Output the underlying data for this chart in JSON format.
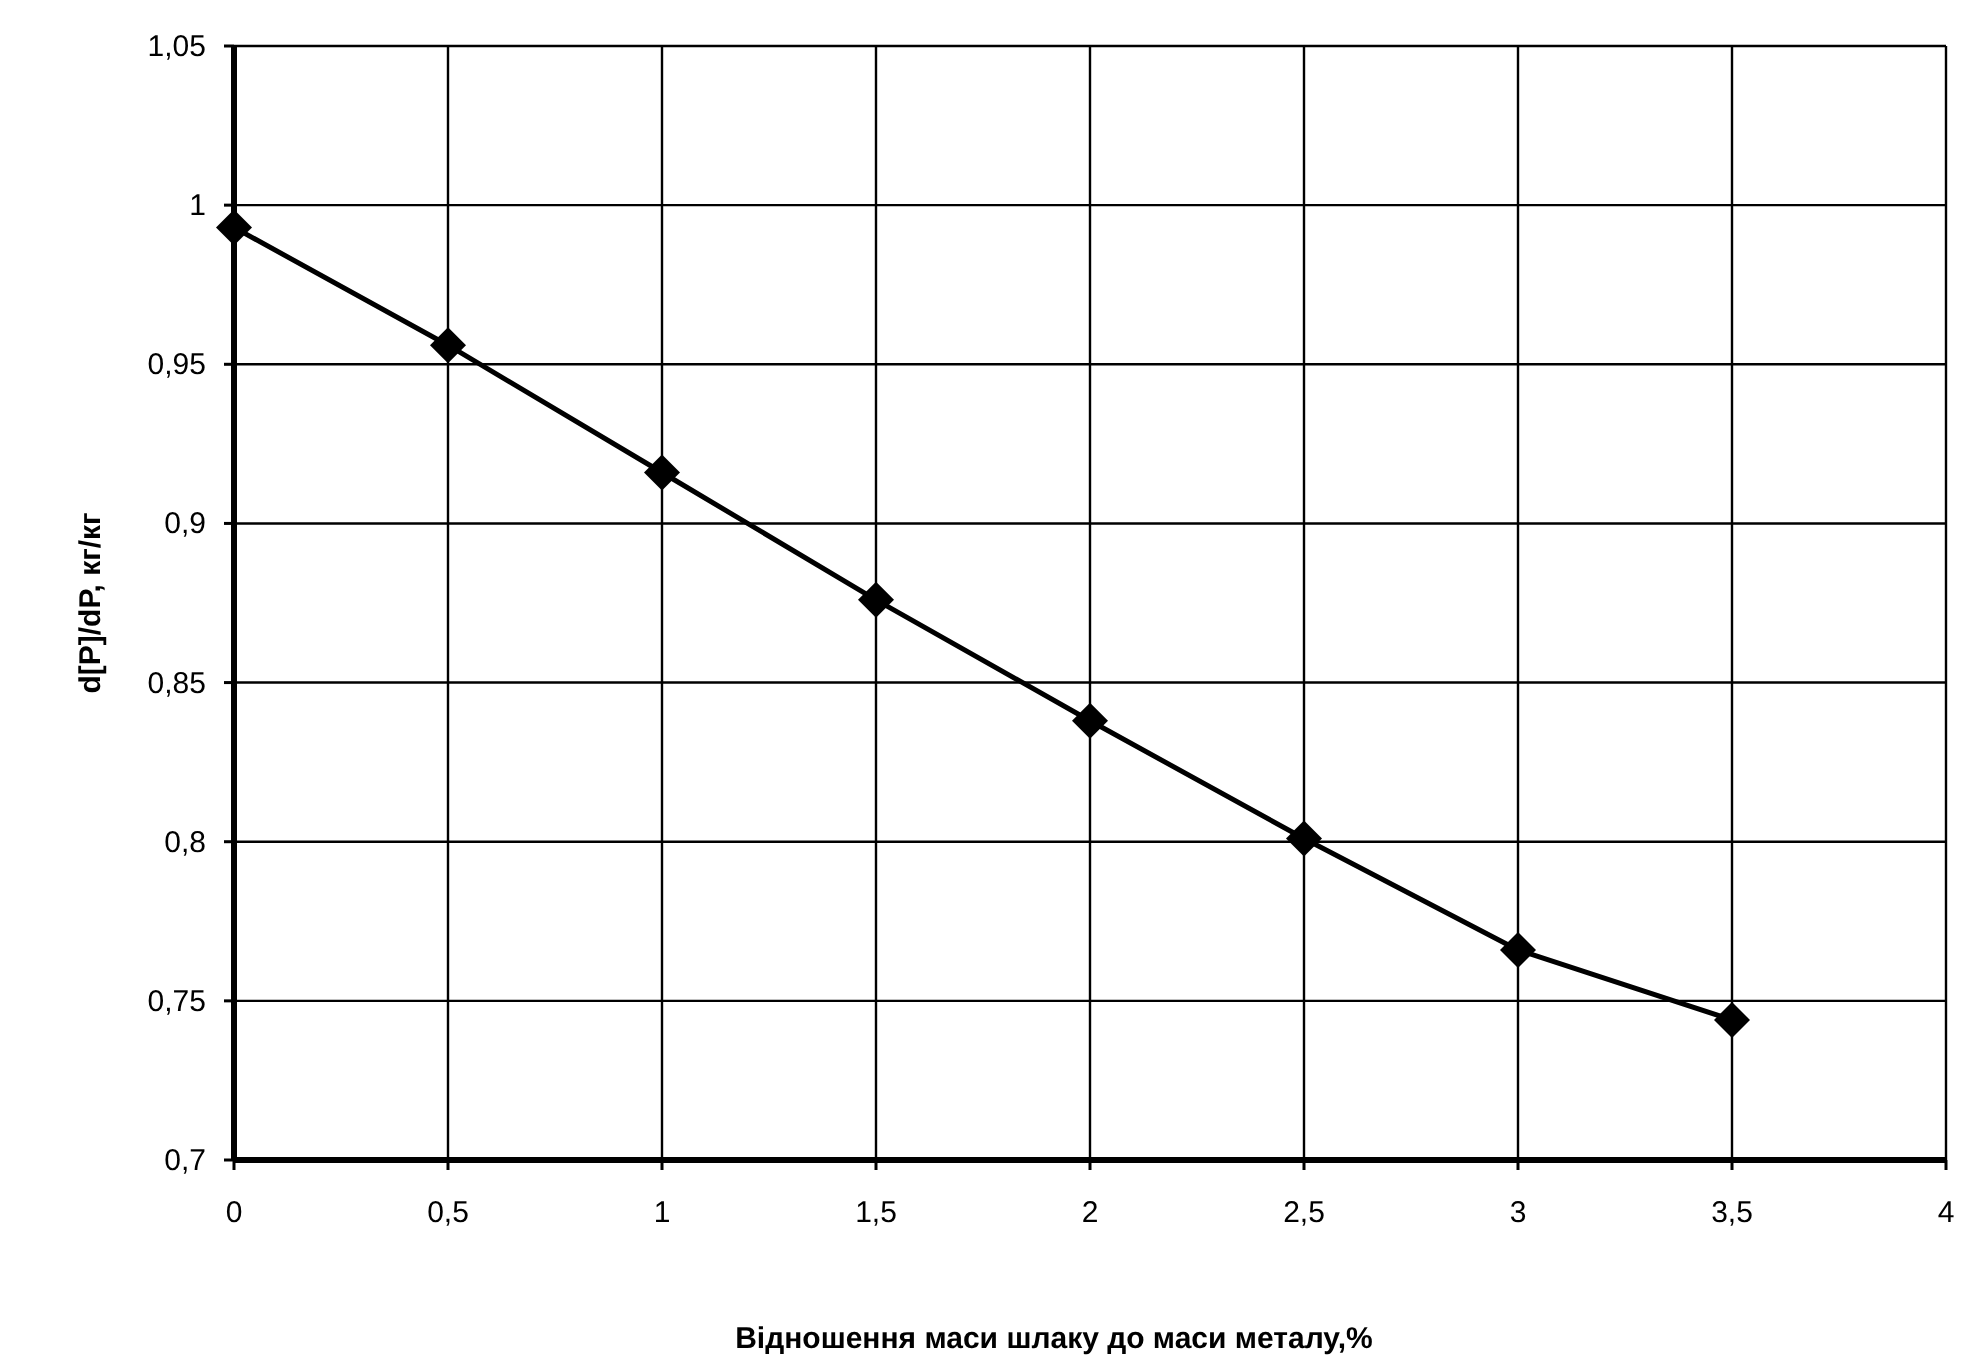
{
  "chart_data": {
    "type": "line",
    "xlabel": "Відношення маси шлаку до маси металу,%",
    "ylabel": "d[P]/dP, кг/кг",
    "x": [
      0,
      0.5,
      1,
      1.5,
      2,
      2.5,
      3,
      3.5
    ],
    "series": [
      {
        "color": "#000000",
        "values": [
          0.993,
          0.956,
          0.916,
          0.876,
          0.838,
          0.801,
          0.766,
          0.744
        ]
      }
    ],
    "xlim": [
      0,
      4
    ],
    "xticks": [
      0,
      {
        "value": 0.5,
        "label": "0,5"
      },
      1,
      {
        "value": 1.5,
        "label": "1,5"
      },
      2,
      {
        "value": 2.5,
        "label": "2,5"
      },
      3,
      {
        "value": 3.5,
        "label": "3,5"
      },
      4
    ],
    "ylim": [
      0.7,
      1.05
    ],
    "yticks": [
      {
        "value": 0.7,
        "label": "0,7"
      },
      {
        "value": 0.75,
        "label": "0,75"
      },
      {
        "value": 0.8,
        "label": "0,8"
      },
      {
        "value": 0.85,
        "label": "0,85"
      },
      {
        "value": 0.9,
        "label": "0,9"
      },
      {
        "value": 0.95,
        "label": "0,95"
      },
      1,
      {
        "value": 1.05,
        "label": "1,05"
      }
    ],
    "grid": true,
    "marker": "diamond",
    "line_style": "solid"
  }
}
